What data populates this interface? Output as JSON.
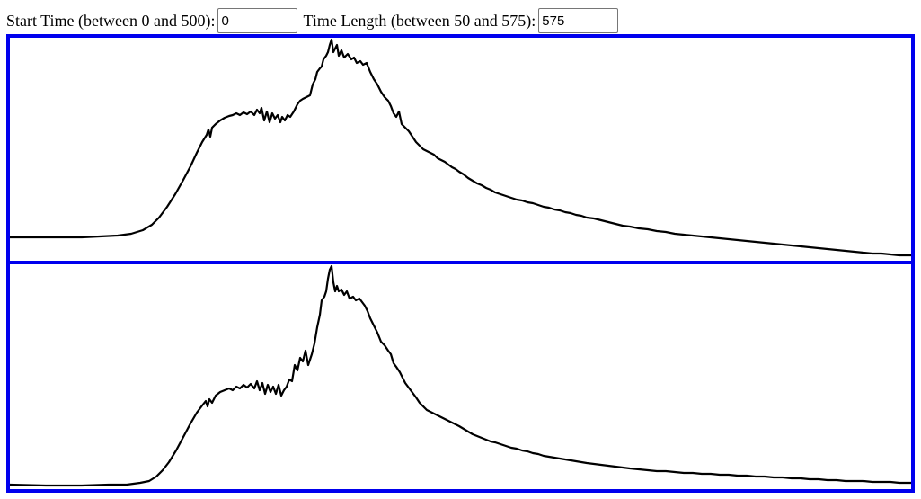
{
  "controls": {
    "start_time_label": "Start Time (between 0 and 500):",
    "start_time_value": "0",
    "time_length_label": "Time Length (between 50 and 575):",
    "time_length_value": "575"
  },
  "colors": {
    "panel_border": "#0000ee",
    "waveform_line": "#000000",
    "background": "#ffffff"
  }
}
